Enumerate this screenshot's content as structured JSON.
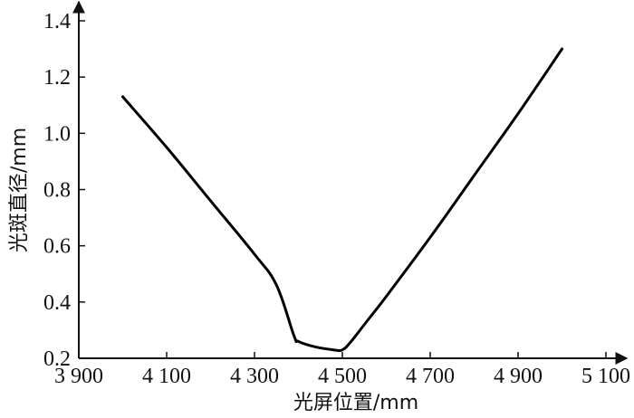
{
  "chart_data": {
    "type": "line",
    "title": "",
    "xlabel": "光屏位置/mm",
    "ylabel": "光斑直径/mm",
    "xlim": [
      3900,
      5100
    ],
    "ylim": [
      0.2,
      1.4
    ],
    "x_ticks": [
      3900,
      4100,
      4300,
      4500,
      4700,
      4900,
      5100
    ],
    "x_tick_labels": [
      "3 900",
      "4 100",
      "4 300",
      "4 500",
      "4 700",
      "4 900",
      "5 100"
    ],
    "y_ticks": [
      0.2,
      0.4,
      0.6,
      0.8,
      1.0,
      1.2,
      1.4
    ],
    "y_tick_labels": [
      "0.2",
      "0.4",
      "0.6",
      "0.8",
      "1.0",
      "1.2",
      "1.4"
    ],
    "grid": false,
    "series": [
      {
        "color": "#000000",
        "x": [
          4000,
          4100,
          4200,
          4300,
          4350,
          4390,
          4400,
          4440,
          4480,
          4500,
          4520,
          4560,
          4600,
          4700,
          4800,
          4900,
          5000
        ],
        "y": [
          1.13,
          0.95,
          0.76,
          0.57,
          0.46,
          0.28,
          0.26,
          0.24,
          0.23,
          0.23,
          0.26,
          0.34,
          0.42,
          0.63,
          0.85,
          1.07,
          1.3
        ]
      }
    ]
  }
}
